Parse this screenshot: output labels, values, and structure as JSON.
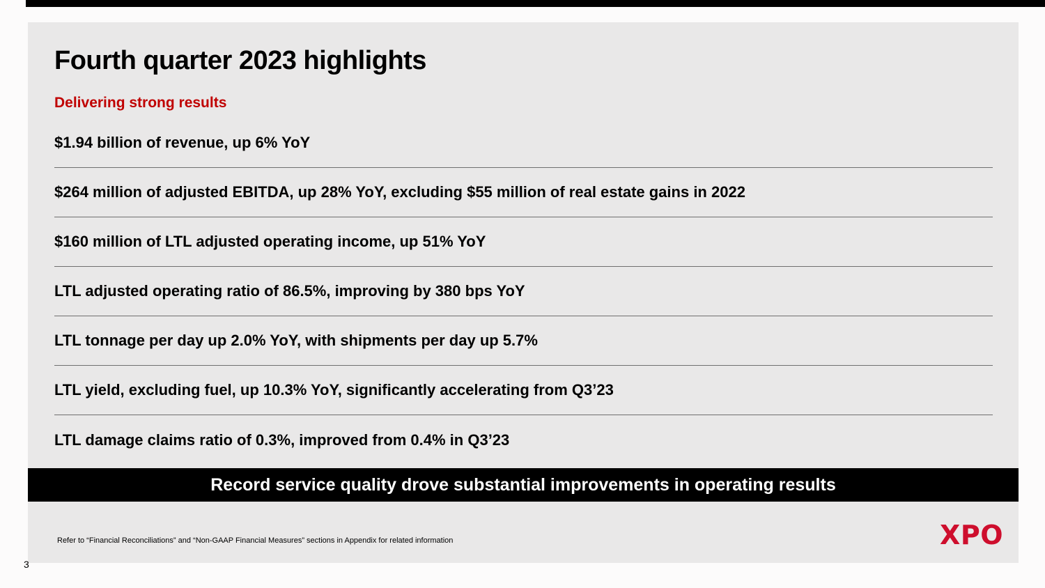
{
  "page_number": "3",
  "slide": {
    "title": "Fourth quarter 2023 highlights",
    "subtitle": "Delivering strong results",
    "highlights": [
      "$1.94 billion of revenue, up 6% YoY",
      "$264 million of adjusted EBITDA, up 28% YoY, excluding $55 million of real estate gains in 2022",
      "$160 million of LTL adjusted operating income, up 51% YoY",
      "LTL adjusted operating ratio of 86.5%, improving by 380 bps YoY",
      "LTL tonnage per day up 2.0% YoY, with shipments per day up 5.7%",
      "LTL yield, excluding fuel, up 10.3% YoY, significantly accelerating from Q3’23",
      "LTL damage claims ratio of 0.3%, improved from 0.4% in Q3’23"
    ],
    "banner": "Record service quality drove substantial improvements in operating results",
    "footnote": "Refer to “Financial Reconciliations” and “Non-GAAP Financial Measures” sections in Appendix for related information",
    "logo": "XPO"
  },
  "colors": {
    "subtitle_red": "#C00000",
    "logo_red": "#CE0E2D",
    "slide_background": "#E9E8E8",
    "banner_background": "#000000",
    "banner_text": "#FFFFFF",
    "divider_line": "#6F6F6F"
  }
}
